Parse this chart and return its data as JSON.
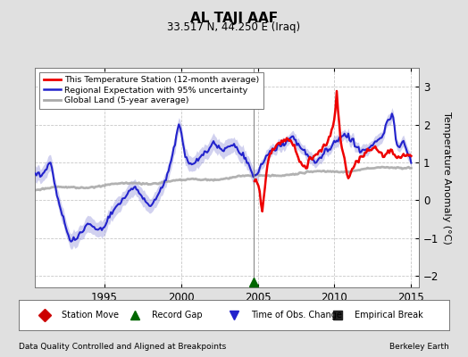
{
  "title": "AL TAJI AAF",
  "subtitle": "33.517 N, 44.250 E (Iraq)",
  "ylabel": "Temperature Anomaly (°C)",
  "footer_left": "Data Quality Controlled and Aligned at Breakpoints",
  "footer_right": "Berkeley Earth",
  "xlim": [
    1990.5,
    2015.5
  ],
  "ylim": [
    -2.3,
    3.5
  ],
  "yticks": [
    -2,
    -1,
    0,
    1,
    2,
    3
  ],
  "xticks": [
    1995,
    2000,
    2005,
    2010,
    2015
  ],
  "background_color": "#e0e0e0",
  "plot_bg_color": "#ffffff",
  "grid_color": "#c8c8c8",
  "red_line_color": "#ee0000",
  "blue_line_color": "#2222cc",
  "blue_fill_color": "#9999dd",
  "gray_line_color": "#aaaaaa",
  "vertical_line_x": 2004.75,
  "vertical_line_color": "#888888",
  "green_marker_x": 2004.75,
  "green_marker_color": "#006600",
  "legend_items": [
    {
      "label": "This Temperature Station (12-month average)",
      "color": "#ee0000",
      "lw": 2.0
    },
    {
      "label": "Regional Expectation with 95% uncertainty",
      "color": "#2222cc",
      "lw": 1.8
    },
    {
      "label": "Global Land (5-year average)",
      "color": "#aaaaaa",
      "lw": 2.0
    }
  ],
  "bottom_legend": [
    {
      "label": "Station Move",
      "color": "#cc0000",
      "marker": "D"
    },
    {
      "label": "Record Gap",
      "color": "#006600",
      "marker": "^"
    },
    {
      "label": "Time of Obs. Change",
      "color": "#2222cc",
      "marker": "v"
    },
    {
      "label": "Empirical Break",
      "color": "#222222",
      "marker": "s"
    }
  ]
}
